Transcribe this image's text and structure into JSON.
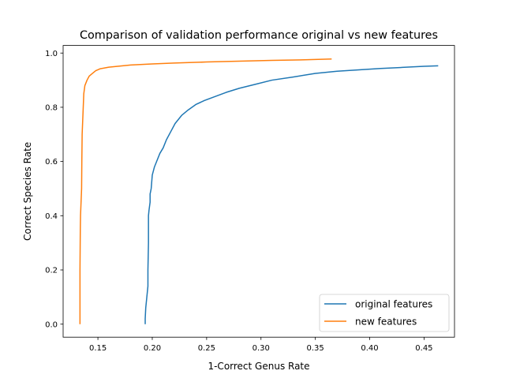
{
  "chart_data": {
    "type": "line",
    "title": "Comparison of validation performance original vs new features",
    "xlabel": "1-Correct Genus Rate",
    "ylabel": "Correct Species Rate",
    "xlim": [
      0.118,
      0.478
    ],
    "ylim": [
      -0.048,
      1.028
    ],
    "xticks": [
      0.15,
      0.2,
      0.25,
      0.3,
      0.35,
      0.4,
      0.45
    ],
    "xtick_labels": [
      "0.15",
      "0.20",
      "0.25",
      "0.30",
      "0.35",
      "0.40",
      "0.45"
    ],
    "yticks": [
      0.0,
      0.2,
      0.4,
      0.6,
      0.8,
      1.0
    ],
    "ytick_labels": [
      "0.0",
      "0.2",
      "0.4",
      "0.6",
      "0.8",
      "1.0"
    ],
    "grid": false,
    "legend_position": "lower-right",
    "series": [
      {
        "name": "original features",
        "color": "#1f77b4",
        "points": [
          [
            0.1935,
            0.0
          ],
          [
            0.1935,
            0.02
          ],
          [
            0.194,
            0.06
          ],
          [
            0.1945,
            0.08
          ],
          [
            0.195,
            0.1
          ],
          [
            0.1955,
            0.12
          ],
          [
            0.196,
            0.14
          ],
          [
            0.196,
            0.2
          ],
          [
            0.1965,
            0.3
          ],
          [
            0.1965,
            0.4
          ],
          [
            0.197,
            0.42
          ],
          [
            0.198,
            0.45
          ],
          [
            0.198,
            0.48
          ],
          [
            0.199,
            0.5
          ],
          [
            0.2,
            0.55
          ],
          [
            0.202,
            0.58
          ],
          [
            0.204,
            0.6
          ],
          [
            0.207,
            0.63
          ],
          [
            0.21,
            0.65
          ],
          [
            0.213,
            0.68
          ],
          [
            0.217,
            0.71
          ],
          [
            0.221,
            0.74
          ],
          [
            0.227,
            0.77
          ],
          [
            0.233,
            0.79
          ],
          [
            0.24,
            0.81
          ],
          [
            0.248,
            0.825
          ],
          [
            0.258,
            0.84
          ],
          [
            0.268,
            0.855
          ],
          [
            0.28,
            0.87
          ],
          [
            0.295,
            0.885
          ],
          [
            0.31,
            0.9
          ],
          [
            0.33,
            0.912
          ],
          [
            0.35,
            0.925
          ],
          [
            0.37,
            0.933
          ],
          [
            0.39,
            0.938
          ],
          [
            0.41,
            0.943
          ],
          [
            0.43,
            0.947
          ],
          [
            0.45,
            0.951
          ],
          [
            0.463,
            0.953
          ]
        ]
      },
      {
        "name": "new features",
        "color": "#ff7f0e",
        "points": [
          [
            0.1335,
            0.0
          ],
          [
            0.1335,
            0.2
          ],
          [
            0.1338,
            0.35
          ],
          [
            0.134,
            0.4
          ],
          [
            0.1345,
            0.45
          ],
          [
            0.135,
            0.5
          ],
          [
            0.1352,
            0.6
          ],
          [
            0.1355,
            0.7
          ],
          [
            0.136,
            0.75
          ],
          [
            0.1365,
            0.8
          ],
          [
            0.137,
            0.85
          ],
          [
            0.138,
            0.88
          ],
          [
            0.14,
            0.9
          ],
          [
            0.142,
            0.915
          ],
          [
            0.145,
            0.925
          ],
          [
            0.148,
            0.935
          ],
          [
            0.152,
            0.942
          ],
          [
            0.16,
            0.948
          ],
          [
            0.17,
            0.952
          ],
          [
            0.18,
            0.956
          ],
          [
            0.2,
            0.96
          ],
          [
            0.22,
            0.963
          ],
          [
            0.25,
            0.967
          ],
          [
            0.28,
            0.97
          ],
          [
            0.31,
            0.973
          ],
          [
            0.34,
            0.975
          ],
          [
            0.365,
            0.978
          ]
        ]
      }
    ]
  }
}
